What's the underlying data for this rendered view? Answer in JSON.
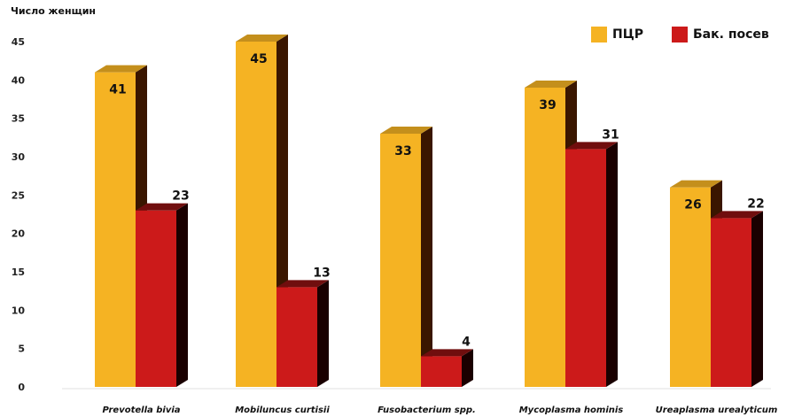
{
  "chart_data": {
    "type": "bar",
    "title": "",
    "xlabel": "",
    "ylabel": "Число женщин",
    "ylim": [
      0,
      45
    ],
    "yticks": [
      0,
      5,
      10,
      15,
      20,
      25,
      30,
      35,
      40,
      45
    ],
    "categories": [
      "Prevotella bivia",
      "Mobiluncus curtisii",
      "Fusobacterium spp.",
      "Mycoplasma hominis",
      "Ureaplasma urealyticum"
    ],
    "series": [
      {
        "name": "ПЦР",
        "values": [
          41,
          45,
          33,
          39,
          26
        ],
        "color": "#f5b323",
        "dark": "#3a1600"
      },
      {
        "name": "Бак. посев",
        "values": [
          23,
          13,
          4,
          31,
          22
        ],
        "color": "#cc1a1a",
        "dark": "#1a0000"
      }
    ],
    "grid": false,
    "legend_position": "top-right",
    "style": "3d-bar"
  }
}
